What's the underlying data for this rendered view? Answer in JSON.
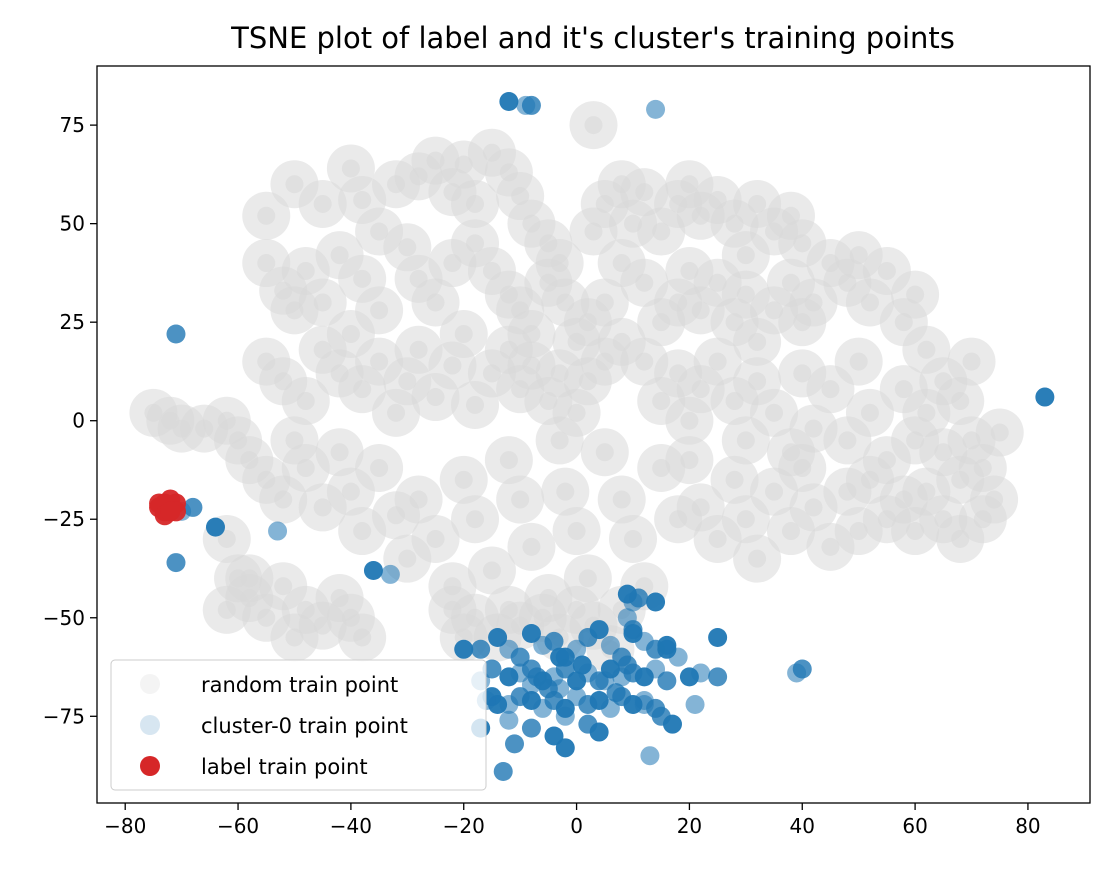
{
  "chart_data": {
    "type": "scatter",
    "title": "TSNE plot of label and it's cluster's training points",
    "xlabel": "",
    "ylabel": "",
    "xlim": [
      -85,
      91
    ],
    "ylim": [
      -97,
      90
    ],
    "xticks": [
      -80,
      -60,
      -40,
      -20,
      0,
      20,
      40,
      60,
      80
    ],
    "xtick_labels": [
      "−80",
      "−60",
      "−40",
      "−20",
      "0",
      "20",
      "40",
      "60",
      "80"
    ],
    "yticks": [
      75,
      50,
      25,
      0,
      -25,
      -50,
      -75
    ],
    "ytick_labels": [
      "75",
      "50",
      "25",
      "0",
      "−25",
      "−50",
      "−75"
    ],
    "grid": false,
    "legend_position": "lower-left",
    "series": [
      {
        "name": "random train point",
        "color": "#d9d9d9",
        "alpha": 0.35,
        "points": [
          [
            -55,
            52
          ],
          [
            -50,
            60
          ],
          [
            -45,
            55
          ],
          [
            -40,
            64
          ],
          [
            -38,
            56
          ],
          [
            -35,
            48
          ],
          [
            -32,
            60
          ],
          [
            -28,
            62
          ],
          [
            -25,
            66
          ],
          [
            -22,
            58
          ],
          [
            -20,
            65
          ],
          [
            -18,
            55
          ],
          [
            -15,
            68
          ],
          [
            -12,
            63
          ],
          [
            -10,
            57
          ],
          [
            -8,
            50
          ],
          [
            -5,
            45
          ],
          [
            -55,
            40
          ],
          [
            -52,
            33
          ],
          [
            -50,
            28
          ],
          [
            -48,
            38
          ],
          [
            -45,
            30
          ],
          [
            -42,
            42
          ],
          [
            -38,
            36
          ],
          [
            -35,
            28
          ],
          [
            -30,
            44
          ],
          [
            -28,
            36
          ],
          [
            -25,
            30
          ],
          [
            -22,
            40
          ],
          [
            -18,
            45
          ],
          [
            -15,
            38
          ],
          [
            -12,
            32
          ],
          [
            -10,
            28
          ],
          [
            -8,
            22
          ],
          [
            -5,
            35
          ],
          [
            -3,
            40
          ],
          [
            -2,
            30
          ],
          [
            0,
            20
          ],
          [
            2,
            25
          ],
          [
            -55,
            15
          ],
          [
            -52,
            10
          ],
          [
            -48,
            5
          ],
          [
            -45,
            18
          ],
          [
            -42,
            12
          ],
          [
            -40,
            22
          ],
          [
            -38,
            8
          ],
          [
            -35,
            15
          ],
          [
            -32,
            2
          ],
          [
            -30,
            10
          ],
          [
            -28,
            18
          ],
          [
            -25,
            6
          ],
          [
            -22,
            14
          ],
          [
            -20,
            22
          ],
          [
            -18,
            4
          ],
          [
            -15,
            12
          ],
          [
            -12,
            18
          ],
          [
            -10,
            8
          ],
          [
            -8,
            14
          ],
          [
            -5,
            5
          ],
          [
            -3,
            12
          ],
          [
            0,
            2
          ],
          [
            2,
            10
          ],
          [
            5,
            15
          ],
          [
            8,
            20
          ],
          [
            -62,
            0
          ],
          [
            -60,
            -5
          ],
          [
            -58,
            -10
          ],
          [
            -55,
            -15
          ],
          [
            -52,
            -20
          ],
          [
            -50,
            -5
          ],
          [
            -48,
            -12
          ],
          [
            -45,
            -22
          ],
          [
            -42,
            -8
          ],
          [
            -40,
            -18
          ],
          [
            -38,
            -28
          ],
          [
            -35,
            -12
          ],
          [
            -32,
            -24
          ],
          [
            -30,
            -35
          ],
          [
            -28,
            -20
          ],
          [
            -25,
            -30
          ],
          [
            -22,
            -42
          ],
          [
            -20,
            -15
          ],
          [
            -18,
            -25
          ],
          [
            -15,
            -38
          ],
          [
            -12,
            -10
          ],
          [
            -10,
            -20
          ],
          [
            -8,
            -32
          ],
          [
            -5,
            -45
          ],
          [
            -3,
            -5
          ],
          [
            -2,
            -18
          ],
          [
            0,
            -28
          ],
          [
            2,
            -40
          ],
          [
            5,
            -8
          ],
          [
            8,
            -20
          ],
          [
            10,
            -30
          ],
          [
            12,
            -42
          ],
          [
            15,
            -12
          ],
          [
            18,
            -25
          ],
          [
            5,
            30
          ],
          [
            8,
            40
          ],
          [
            10,
            50
          ],
          [
            12,
            58
          ],
          [
            15,
            48
          ],
          [
            18,
            55
          ],
          [
            20,
            60
          ],
          [
            22,
            52
          ],
          [
            25,
            56
          ],
          [
            28,
            50
          ],
          [
            30,
            42
          ],
          [
            32,
            55
          ],
          [
            35,
            48
          ],
          [
            38,
            52
          ],
          [
            40,
            45
          ],
          [
            5,
            55
          ],
          [
            8,
            60
          ],
          [
            3,
            48
          ],
          [
            12,
            35
          ],
          [
            15,
            25
          ],
          [
            18,
            30
          ],
          [
            20,
            38
          ],
          [
            22,
            28
          ],
          [
            25,
            35
          ],
          [
            28,
            25
          ],
          [
            30,
            32
          ],
          [
            32,
            20
          ],
          [
            35,
            28
          ],
          [
            38,
            35
          ],
          [
            40,
            25
          ],
          [
            42,
            30
          ],
          [
            45,
            40
          ],
          [
            48,
            35
          ],
          [
            50,
            42
          ],
          [
            52,
            30
          ],
          [
            55,
            38
          ],
          [
            58,
            25
          ],
          [
            60,
            32
          ],
          [
            62,
            18
          ],
          [
            12,
            15
          ],
          [
            15,
            5
          ],
          [
            18,
            12
          ],
          [
            20,
            0
          ],
          [
            22,
            8
          ],
          [
            25,
            15
          ],
          [
            28,
            5
          ],
          [
            30,
            -5
          ],
          [
            32,
            10
          ],
          [
            35,
            2
          ],
          [
            38,
            -8
          ],
          [
            40,
            12
          ],
          [
            42,
            -2
          ],
          [
            45,
            8
          ],
          [
            48,
            -5
          ],
          [
            50,
            15
          ],
          [
            52,
            2
          ],
          [
            55,
            -10
          ],
          [
            58,
            8
          ],
          [
            60,
            -5
          ],
          [
            62,
            2
          ],
          [
            65,
            -8
          ],
          [
            68,
            -15
          ],
          [
            70,
            -5
          ],
          [
            72,
            -12
          ],
          [
            74,
            -20
          ],
          [
            75,
            -3
          ],
          [
            65,
            10
          ],
          [
            68,
            5
          ],
          [
            70,
            15
          ],
          [
            72,
            -25
          ],
          [
            20,
            -10
          ],
          [
            22,
            -22
          ],
          [
            25,
            -30
          ],
          [
            28,
            -15
          ],
          [
            30,
            -25
          ],
          [
            32,
            -35
          ],
          [
            35,
            -18
          ],
          [
            38,
            -28
          ],
          [
            40,
            -12
          ],
          [
            42,
            -22
          ],
          [
            45,
            -32
          ],
          [
            48,
            -18
          ],
          [
            50,
            -28
          ],
          [
            52,
            -15
          ],
          [
            55,
            -25
          ],
          [
            58,
            -20
          ],
          [
            60,
            -28
          ],
          [
            62,
            -18
          ],
          [
            65,
            -25
          ],
          [
            68,
            -30
          ],
          [
            -62,
            -30
          ],
          [
            -60,
            -40
          ],
          [
            -58,
            -45
          ],
          [
            -55,
            -50
          ],
          [
            -52,
            -42
          ],
          [
            -50,
            -55
          ],
          [
            -48,
            -48
          ],
          [
            -45,
            -52
          ],
          [
            -42,
            -45
          ],
          [
            -40,
            -50
          ],
          [
            -38,
            -55
          ],
          [
            -62,
            -48
          ],
          [
            -58,
            -40
          ],
          [
            -72,
            0
          ],
          [
            -70,
            -2
          ],
          [
            -75,
            2
          ],
          [
            -66,
            -2
          ],
          [
            3,
            75
          ],
          [
            -14,
            -55
          ],
          [
            -12,
            -48
          ],
          [
            -10,
            -52
          ],
          [
            -6,
            -50
          ],
          [
            -3,
            -55
          ],
          [
            0,
            -48
          ],
          [
            3,
            -52
          ],
          [
            6,
            -58
          ],
          [
            8,
            -48
          ],
          [
            -18,
            -50
          ],
          [
            -20,
            -55
          ],
          [
            -22,
            -48
          ]
        ]
      },
      {
        "name": "cluster-0 train point",
        "color": "#1f77b4",
        "points": [
          [
            -9,
            80
          ],
          [
            -8,
            80
          ],
          [
            -12,
            81
          ],
          [
            14,
            79
          ],
          [
            -71,
            22
          ],
          [
            83,
            6
          ],
          [
            -70,
            -23
          ],
          [
            -68,
            -22
          ],
          [
            -64,
            -27
          ],
          [
            -53,
            -28
          ],
          [
            -71,
            -36
          ],
          [
            -36,
            -38
          ],
          [
            -33,
            -39
          ],
          [
            -17,
            -58
          ],
          [
            -14,
            -55
          ],
          [
            -12,
            -58
          ],
          [
            -10,
            -60
          ],
          [
            -8,
            -54
          ],
          [
            -6,
            -57
          ],
          [
            -4,
            -56
          ],
          [
            -2,
            -60
          ],
          [
            0,
            -58
          ],
          [
            2,
            -55
          ],
          [
            4,
            -53
          ],
          [
            6,
            -57
          ],
          [
            8,
            -60
          ],
          [
            10,
            -54
          ],
          [
            12,
            -56
          ],
          [
            14,
            -58
          ],
          [
            16,
            -57
          ],
          [
            18,
            -60
          ],
          [
            -15,
            -63
          ],
          [
            -12,
            -65
          ],
          [
            -10,
            -64
          ],
          [
            -8,
            -63
          ],
          [
            -6,
            -66
          ],
          [
            -4,
            -65
          ],
          [
            -2,
            -63
          ],
          [
            0,
            -66
          ],
          [
            2,
            -64
          ],
          [
            4,
            -66
          ],
          [
            6,
            -63
          ],
          [
            8,
            -65
          ],
          [
            10,
            -64
          ],
          [
            12,
            -65
          ],
          [
            14,
            -63
          ],
          [
            16,
            -66
          ],
          [
            20,
            -65
          ],
          [
            22,
            -64
          ],
          [
            25,
            -65
          ],
          [
            -15,
            -70
          ],
          [
            -12,
            -72
          ],
          [
            -10,
            -70
          ],
          [
            -8,
            -71
          ],
          [
            -6,
            -73
          ],
          [
            -4,
            -71
          ],
          [
            -2,
            -73
          ],
          [
            0,
            -70
          ],
          [
            2,
            -72
          ],
          [
            4,
            -71
          ],
          [
            6,
            -73
          ],
          [
            8,
            -70
          ],
          [
            10,
            -72
          ],
          [
            12,
            -71
          ],
          [
            14,
            -73
          ],
          [
            -14,
            -72
          ],
          [
            -12,
            -76
          ],
          [
            -8,
            -78
          ],
          [
            -4,
            -80
          ],
          [
            -2,
            -75
          ],
          [
            2,
            -77
          ],
          [
            4,
            -79
          ],
          [
            12,
            -72
          ],
          [
            15,
            -75
          ],
          [
            17,
            -77
          ],
          [
            21,
            -72
          ],
          [
            -11,
            -82
          ],
          [
            -2,
            -83
          ],
          [
            13,
            -85
          ],
          [
            -13,
            -89
          ],
          [
            9,
            -44
          ],
          [
            10,
            -46
          ],
          [
            11,
            -45
          ],
          [
            14,
            -46
          ],
          [
            9,
            -50
          ],
          [
            10,
            -53
          ],
          [
            25,
            -55
          ],
          [
            39,
            -64
          ],
          [
            40,
            -63
          ],
          [
            16,
            -58
          ],
          [
            -8,
            -67
          ],
          [
            -7,
            -65
          ],
          [
            -3,
            -60
          ],
          [
            5,
            -66
          ],
          [
            9,
            -62
          ],
          [
            -20,
            -58
          ],
          [
            -17,
            -66
          ],
          [
            -5,
            -68
          ],
          [
            1,
            -62
          ],
          [
            -3,
            -68
          ],
          [
            7,
            -69
          ],
          [
            -17,
            -78
          ],
          [
            -16,
            -71
          ]
        ]
      },
      {
        "name": "label train point",
        "color": "#d62728",
        "points": [
          [
            -74,
            -22
          ],
          [
            -73,
            -23
          ],
          [
            -73,
            -21
          ],
          [
            -72,
            -22
          ],
          [
            -72,
            -20
          ],
          [
            -71,
            -21
          ],
          [
            -74,
            -21
          ],
          [
            -73,
            -24
          ],
          [
            -71,
            -23
          ],
          [
            -72,
            -23
          ]
        ]
      }
    ]
  }
}
